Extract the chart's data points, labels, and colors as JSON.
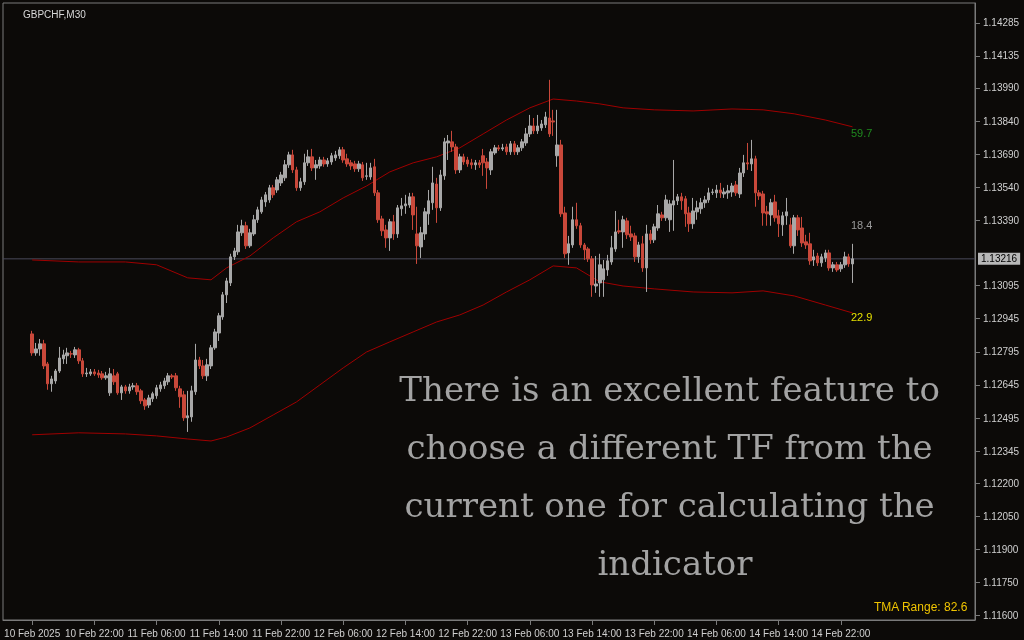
{
  "chart_data": {
    "type": "candlestick",
    "title": "GBPCHF,M30",
    "xlim": [
      "2025-02-10T10:15",
      "2025-02-15T15:15"
    ],
    "xticks": [
      {
        "value": "2025-02-10T14:00",
        "label": "10 Feb 2025"
      },
      {
        "value": "2025-02-10T22:00",
        "label": "10 Feb 22:00"
      },
      {
        "value": "2025-02-11T06:00",
        "label": "11 Feb 06:00"
      },
      {
        "value": "2025-02-11T14:00",
        "label": "11 Feb 14:00"
      },
      {
        "value": "2025-02-11T22:00",
        "label": "11 Feb 22:00"
      },
      {
        "value": "2025-02-12T06:00",
        "label": "12 Feb 06:00"
      },
      {
        "value": "2025-02-12T14:00",
        "label": "12 Feb 14:00"
      },
      {
        "value": "2025-02-12T22:00",
        "label": "12 Feb 22:00"
      },
      {
        "value": "2025-02-13T06:00",
        "label": "13 Feb 06:00"
      },
      {
        "value": "2025-02-13T14:00",
        "label": "13 Feb 14:00"
      },
      {
        "value": "2025-02-13T22:00",
        "label": "13 Feb 22:00"
      },
      {
        "value": "2025-02-14T06:00",
        "label": "14 Feb 06:00"
      },
      {
        "value": "2025-02-14T14:00",
        "label": "14 Feb 14:00"
      },
      {
        "value": "2025-02-14T22:00",
        "label": "14 Feb 22:00"
      }
    ],
    "ylim": [
      1.1158,
      1.14375
    ],
    "yticks": [
      {
        "value": 1.116,
        "label": "1.11600"
      },
      {
        "value": 1.1175,
        "label": "1.11750"
      },
      {
        "value": 1.119,
        "label": "1.11900"
      },
      {
        "value": 1.1205,
        "label": "1.12050"
      },
      {
        "value": 1.122,
        "label": "1.12200"
      },
      1.12345,
      1.12495,
      1.12645,
      1.12795,
      1.12945,
      1.13095,
      {
        "value": 1.1339,
        "label": "1.13390"
      },
      {
        "value": 1.1354,
        "label": "1.13540"
      },
      {
        "value": 1.1369,
        "label": "1.13690"
      },
      {
        "value": 1.1384,
        "label": "1.13840"
      },
      {
        "value": 1.1399,
        "label": "1.13990"
      },
      1.14135,
      1.14285
    ],
    "ref_lines": [
      {
        "axis": "y",
        "value": 1.13216,
        "label": "1.13216",
        "color": "#4a4a5a"
      }
    ],
    "annotations": [
      "59.7",
      "18.4",
      "22.9",
      "TMA Range: 82.6",
      "There is an excellent feature to choose a different TF from the current one for calculating the indicator"
    ],
    "series": [
      {
        "type": "candlestick",
        "x": [
          "2025-02-10T14:00",
          "2025-02-10T14:30",
          "2025-02-10T15:00",
          "2025-02-10T15:30",
          "2025-02-10T16:00",
          "2025-02-10T16:30",
          "2025-02-10T17:00",
          "2025-02-10T17:30",
          "2025-02-10T18:00",
          "2025-02-10T18:30",
          "2025-02-10T19:00",
          "2025-02-10T19:30",
          "2025-02-10T20:00",
          "2025-02-10T20:30",
          "2025-02-10T21:00",
          "2025-02-10T21:30",
          "2025-02-10T22:00",
          "2025-02-10T22:30",
          "2025-02-10T23:00",
          "2025-02-10T23:30",
          "2025-02-11T00:00",
          "2025-02-11T00:30",
          "2025-02-11T01:00",
          "2025-02-11T01:30",
          "2025-02-11T02:00",
          "2025-02-11T02:30",
          "2025-02-11T03:00",
          "2025-02-11T03:30",
          "2025-02-11T04:00",
          "2025-02-11T04:30",
          "2025-02-11T05:00",
          "2025-02-11T05:30",
          "2025-02-11T06:00",
          "2025-02-11T06:30",
          "2025-02-11T07:00",
          "2025-02-11T07:30",
          "2025-02-11T08:00",
          "2025-02-11T08:30",
          "2025-02-11T09:00",
          "2025-02-11T09:30",
          "2025-02-11T10:00",
          "2025-02-11T10:30",
          "2025-02-11T11:00",
          "2025-02-11T11:30",
          "2025-02-11T12:00",
          "2025-02-11T12:30",
          "2025-02-11T13:00",
          "2025-02-11T13:30",
          "2025-02-11T14:00",
          "2025-02-11T14:30",
          "2025-02-11T15:00",
          "2025-02-11T15:30",
          "2025-02-11T16:00",
          "2025-02-11T16:30",
          "2025-02-11T17:00",
          "2025-02-11T17:30",
          "2025-02-11T18:00",
          "2025-02-11T18:30",
          "2025-02-11T19:00",
          "2025-02-11T19:30",
          "2025-02-11T20:00",
          "2025-02-11T20:30",
          "2025-02-11T21:00",
          "2025-02-11T21:30",
          "2025-02-11T22:00",
          "2025-02-11T22:30",
          "2025-02-11T23:00",
          "2025-02-11T23:30",
          "2025-02-12T00:00",
          "2025-02-12T00:30",
          "2025-02-12T01:00",
          "2025-02-12T01:30",
          "2025-02-12T02:00",
          "2025-02-12T02:30",
          "2025-02-12T03:00",
          "2025-02-12T03:30",
          "2025-02-12T04:00",
          "2025-02-12T04:30",
          "2025-02-12T05:00",
          "2025-02-12T05:30",
          "2025-02-12T06:00",
          "2025-02-12T06:30",
          "2025-02-12T07:00",
          "2025-02-12T07:30",
          "2025-02-12T08:00",
          "2025-02-12T08:30",
          "2025-02-12T09:00",
          "2025-02-12T09:30",
          "2025-02-12T10:00",
          "2025-02-12T10:30",
          "2025-02-12T11:00",
          "2025-02-12T11:30",
          "2025-02-12T12:00",
          "2025-02-12T12:30",
          "2025-02-12T13:00",
          "2025-02-12T13:30",
          "2025-02-12T14:00",
          "2025-02-12T14:30",
          "2025-02-12T15:00",
          "2025-02-12T15:30",
          "2025-02-12T16:00",
          "2025-02-12T16:30",
          "2025-02-12T17:00",
          "2025-02-12T17:30",
          "2025-02-12T18:00",
          "2025-02-12T18:30",
          "2025-02-12T19:00",
          "2025-02-12T19:30",
          "2025-02-12T20:00",
          "2025-02-12T20:30",
          "2025-02-12T21:00",
          "2025-02-12T21:30",
          "2025-02-12T22:00",
          "2025-02-12T22:30",
          "2025-02-12T23:00",
          "2025-02-12T23:30",
          "2025-02-13T00:00",
          "2025-02-13T00:30",
          "2025-02-13T01:00",
          "2025-02-13T01:30",
          "2025-02-13T02:00",
          "2025-02-13T02:30",
          "2025-02-13T03:00",
          "2025-02-13T03:30",
          "2025-02-13T04:00",
          "2025-02-13T04:30",
          "2025-02-13T05:00",
          "2025-02-13T05:30",
          "2025-02-13T06:00",
          "2025-02-13T06:30",
          "2025-02-13T07:00",
          "2025-02-13T07:30",
          "2025-02-13T08:00",
          "2025-02-13T08:30",
          "2025-02-13T09:00",
          "2025-02-13T09:30",
          "2025-02-13T10:00",
          "2025-02-13T10:30",
          "2025-02-13T11:00",
          "2025-02-13T11:30",
          "2025-02-13T12:00",
          "2025-02-13T12:30",
          "2025-02-13T13:00",
          "2025-02-13T13:30",
          "2025-02-13T14:00",
          "2025-02-13T14:30",
          "2025-02-13T15:00",
          "2025-02-13T15:30",
          "2025-02-13T16:00",
          "2025-02-13T16:30",
          "2025-02-13T17:00",
          "2025-02-13T17:30",
          "2025-02-13T18:00",
          "2025-02-13T18:30",
          "2025-02-13T19:00",
          "2025-02-13T19:30",
          "2025-02-13T20:00",
          "2025-02-13T20:30",
          "2025-02-13T21:00",
          "2025-02-13T21:30",
          "2025-02-13T22:00",
          "2025-02-13T22:30",
          "2025-02-13T23:00",
          "2025-02-13T23:30",
          "2025-02-14T00:00",
          "2025-02-14T00:30",
          "2025-02-14T01:00",
          "2025-02-14T01:30",
          "2025-02-14T02:00",
          "2025-02-14T02:30",
          "2025-02-14T03:00",
          "2025-02-14T03:30",
          "2025-02-14T04:00",
          "2025-02-14T04:30",
          "2025-02-14T05:00",
          "2025-02-14T05:30",
          "2025-02-14T06:00",
          "2025-02-14T06:30",
          "2025-02-14T07:00",
          "2025-02-14T07:30",
          "2025-02-14T08:00",
          "2025-02-14T08:30",
          "2025-02-14T09:00",
          "2025-02-14T09:30",
          "2025-02-14T10:00",
          "2025-02-14T10:30",
          "2025-02-14T11:00",
          "2025-02-14T11:30",
          "2025-02-14T12:00",
          "2025-02-14T12:30",
          "2025-02-14T13:00",
          "2025-02-14T13:30",
          "2025-02-14T14:00",
          "2025-02-14T14:30",
          "2025-02-14T15:00",
          "2025-02-14T15:30",
          "2025-02-14T16:00",
          "2025-02-14T16:30",
          "2025-02-14T17:00",
          "2025-02-14T17:30",
          "2025-02-14T18:00",
          "2025-02-14T18:30",
          "2025-02-14T19:00",
          "2025-02-14T19:30",
          "2025-02-14T20:00",
          "2025-02-14T20:30",
          "2025-02-14T21:00",
          "2025-02-14T21:30",
          "2025-02-14T22:00",
          "2025-02-14T22:30",
          "2025-02-14T23:00",
          "2025-02-14T23:30"
        ],
        "ohlc": [
          [
            1.12876,
            1.1289,
            1.12777,
            1.1279
          ],
          [
            1.1279,
            1.12835,
            1.12777,
            1.12808
          ],
          [
            1.12808,
            1.12853,
            1.12777,
            1.12831
          ],
          [
            1.12831,
            1.12849,
            1.12717,
            1.12731
          ],
          [
            1.1274,
            1.12749,
            1.12623,
            1.1265
          ],
          [
            1.1265,
            1.12686,
            1.12614,
            1.12672
          ],
          [
            1.12663,
            1.12717,
            1.1265,
            1.12708
          ],
          [
            1.12708,
            1.12817,
            1.12699,
            1.12767
          ],
          [
            1.12763,
            1.12804,
            1.1274,
            1.12781
          ],
          [
            1.12777,
            1.12813,
            1.1274,
            1.1279
          ],
          [
            1.12786,
            1.12799,
            1.12767,
            1.12785
          ],
          [
            1.12781,
            1.12817,
            1.12767,
            1.12804
          ],
          [
            1.12804,
            1.12813,
            1.1274,
            1.12754
          ],
          [
            1.12754,
            1.12767,
            1.12681,
            1.12695
          ],
          [
            1.12695,
            1.12722,
            1.12681,
            1.12699
          ],
          [
            1.12695,
            1.12717,
            1.12686,
            1.12704
          ],
          [
            1.12704,
            1.12717,
            1.12686,
            1.12695
          ],
          [
            1.12699,
            1.12713,
            1.12677,
            1.1269
          ],
          [
            1.12695,
            1.12708,
            1.12668,
            1.12677
          ],
          [
            1.12677,
            1.12704,
            1.12668,
            1.12686
          ],
          [
            1.12609,
            1.12722,
            1.12595,
            1.12695
          ],
          [
            1.12686,
            1.12717,
            1.12645,
            1.12659
          ],
          [
            1.12695,
            1.12704,
            1.126,
            1.12609
          ],
          [
            1.12609,
            1.12645,
            1.12577,
            1.12636
          ],
          [
            1.12636,
            1.12645,
            1.12605,
            1.12618
          ],
          [
            1.12618,
            1.1265,
            1.12605,
            1.12636
          ],
          [
            1.12636,
            1.12654,
            1.12623,
            1.12641
          ],
          [
            1.12641,
            1.12654,
            1.126,
            1.12614
          ],
          [
            1.12618,
            1.12627,
            1.12559,
            1.12573
          ],
          [
            1.12577,
            1.12586,
            1.12532,
            1.1255
          ],
          [
            1.12554,
            1.126,
            1.12541,
            1.12586
          ],
          [
            1.12582,
            1.12614,
            1.12568,
            1.12605
          ],
          [
            1.12596,
            1.12645,
            1.12582,
            1.12632
          ],
          [
            1.12627,
            1.12659,
            1.12614,
            1.12645
          ],
          [
            1.12641,
            1.12677,
            1.12627,
            1.12663
          ],
          [
            1.12659,
            1.12699,
            1.12645,
            1.12686
          ],
          [
            1.12686,
            1.12695,
            1.12672,
            1.12681
          ],
          [
            1.12686,
            1.12699,
            1.12618,
            1.12632
          ],
          [
            1.12627,
            1.12641,
            1.12541,
            1.12591
          ],
          [
            1.126,
            1.12618,
            1.12482,
            1.12496
          ],
          [
            1.12496,
            1.12618,
            1.12432,
            1.12505
          ],
          [
            1.125,
            1.12641,
            1.12478,
            1.12618
          ],
          [
            1.12614,
            1.12831,
            1.126,
            1.12758
          ],
          [
            1.12758,
            1.12772,
            1.12717,
            1.12731
          ],
          [
            1.12731,
            1.12758,
            1.12672,
            1.12686
          ],
          [
            1.12686,
            1.12763,
            1.12663,
            1.12736
          ],
          [
            1.12731,
            1.12826,
            1.12717,
            1.12813
          ],
          [
            1.12813,
            1.12899,
            1.12804,
            1.12885
          ],
          [
            1.1288,
            1.12971,
            1.12844,
            1.12958
          ],
          [
            1.12953,
            1.13066,
            1.1294,
            1.13053
          ],
          [
            1.13053,
            1.1313,
            1.13016,
            1.13116
          ],
          [
            1.13107,
            1.13239,
            1.13093,
            1.13225
          ],
          [
            1.13225,
            1.13266,
            1.13211,
            1.13252
          ],
          [
            1.13248,
            1.1337,
            1.13234,
            1.13338
          ],
          [
            1.13334,
            1.13393,
            1.1332,
            1.13366
          ],
          [
            1.13366,
            1.13384,
            1.13261,
            1.13275
          ],
          [
            1.13275,
            1.13352,
            1.13266,
            1.13334
          ],
          [
            1.13329,
            1.13415,
            1.1332,
            1.13393
          ],
          [
            1.13393,
            1.13452,
            1.13379,
            1.13438
          ],
          [
            1.13429,
            1.13497,
            1.1342,
            1.13483
          ],
          [
            1.13474,
            1.13519,
            1.13452,
            1.13506
          ],
          [
            1.13483,
            1.13551,
            1.1347,
            1.13538
          ],
          [
            1.13538,
            1.13551,
            1.13492,
            1.13506
          ],
          [
            1.13528,
            1.13587,
            1.13515,
            1.13574
          ],
          [
            1.1356,
            1.1361,
            1.13546,
            1.13596
          ],
          [
            1.13583,
            1.13664,
            1.13569,
            1.13642
          ],
          [
            1.13642,
            1.13701,
            1.13628,
            1.13687
          ],
          [
            1.13687,
            1.1371,
            1.13605,
            1.13619
          ],
          [
            1.13619,
            1.13633,
            1.13524,
            1.13538
          ],
          [
            1.13538,
            1.13583,
            1.13524,
            1.13565
          ],
          [
            1.13565,
            1.13692,
            1.13551,
            1.13651
          ],
          [
            1.13651,
            1.1371,
            1.13637,
            1.13678
          ],
          [
            1.13678,
            1.13714,
            1.13614,
            1.13628
          ],
          [
            1.13628,
            1.13664,
            1.13574,
            1.13642
          ],
          [
            1.13637,
            1.13678,
            1.13624,
            1.13664
          ],
          [
            1.13664,
            1.13678,
            1.13633,
            1.13646
          ],
          [
            1.13646,
            1.13673,
            1.13633,
            1.1366
          ],
          [
            1.13655,
            1.13696,
            1.13642,
            1.13683
          ],
          [
            1.13673,
            1.13705,
            1.1366,
            1.13687
          ],
          [
            1.13683,
            1.13723,
            1.13669,
            1.1371
          ],
          [
            1.1371,
            1.13723,
            1.13651,
            1.13664
          ],
          [
            1.13669,
            1.13692,
            1.13633,
            1.13646
          ],
          [
            1.13651,
            1.13664,
            1.13619,
            1.13637
          ],
          [
            1.13646,
            1.1366,
            1.1361,
            1.13624
          ],
          [
            1.13624,
            1.1366,
            1.1361,
            1.13646
          ],
          [
            1.13642,
            1.13655,
            1.13569,
            1.13583
          ],
          [
            1.1359,
            1.13651,
            1.13574,
            1.13592
          ],
          [
            1.13587,
            1.13651,
            1.13574,
            1.13628
          ],
          [
            1.13633,
            1.13669,
            1.13501,
            1.13515
          ],
          [
            1.13515,
            1.13528,
            1.13379,
            1.13393
          ],
          [
            1.13397,
            1.13411,
            1.1332,
            1.13343
          ],
          [
            1.13347,
            1.1337,
            1.13266,
            1.13311
          ],
          [
            1.13311,
            1.13397,
            1.13252,
            1.13384
          ],
          [
            1.13384,
            1.13415,
            1.13302,
            1.13329
          ],
          [
            1.13329,
            1.1346,
            1.13311,
            1.13447
          ],
          [
            1.13443,
            1.13492,
            1.13411,
            1.13456
          ],
          [
            1.13456,
            1.13506,
            1.1342,
            1.13465
          ],
          [
            1.1346,
            1.13515,
            1.13447,
            1.13497
          ],
          [
            1.13497,
            1.13515,
            1.13347,
            1.13415
          ],
          [
            1.13329,
            1.13452,
            1.13193,
            1.13275
          ],
          [
            1.1327,
            1.13361,
            1.1322,
            1.13334
          ],
          [
            1.13329,
            1.13447,
            1.13302,
            1.13429
          ],
          [
            1.1342,
            1.13528,
            1.1337,
            1.13479
          ],
          [
            1.1347,
            1.13633,
            1.13438,
            1.1356
          ],
          [
            1.13555,
            1.13583,
            1.13379,
            1.13447
          ],
          [
            1.13447,
            1.13619,
            1.13433,
            1.13596
          ],
          [
            1.13592,
            1.13764,
            1.13574,
            1.13746
          ],
          [
            1.13741,
            1.13777,
            1.13664,
            1.1375
          ],
          [
            1.13746,
            1.13796,
            1.13701,
            1.13723
          ],
          [
            1.13723,
            1.13737,
            1.13601,
            1.13619
          ],
          [
            1.13619,
            1.13692,
            1.13605,
            1.13678
          ],
          [
            1.13678,
            1.13692,
            1.13642,
            1.13655
          ],
          [
            1.13664,
            1.13678,
            1.13633,
            1.13646
          ],
          [
            1.13651,
            1.13669,
            1.13624,
            1.13642
          ],
          [
            1.13642,
            1.13664,
            1.13619,
            1.13651
          ],
          [
            1.13651,
            1.13664,
            1.13628,
            1.13642
          ],
          [
            1.13683,
            1.13714,
            1.13592,
            1.13651
          ],
          [
            1.13655,
            1.13673,
            1.13533,
            1.13628
          ],
          [
            1.13619,
            1.13714,
            1.13596,
            1.13701
          ],
          [
            1.13696,
            1.13732,
            1.13687,
            1.13719
          ],
          [
            1.13719,
            1.13732,
            1.13705,
            1.13714
          ],
          [
            1.13714,
            1.13737,
            1.13705,
            1.13719
          ],
          [
            1.13723,
            1.13737,
            1.13687,
            1.13701
          ],
          [
            1.13701,
            1.1375,
            1.13687,
            1.13737
          ],
          [
            1.13737,
            1.1375,
            1.13687,
            1.13701
          ],
          [
            1.13701,
            1.13732,
            1.13687,
            1.13719
          ],
          [
            1.13719,
            1.13759,
            1.13705,
            1.13746
          ],
          [
            1.13741,
            1.13809,
            1.13728,
            1.13782
          ],
          [
            1.13782,
            1.13868,
            1.13768,
            1.13818
          ],
          [
            1.13818,
            1.13854,
            1.13782,
            1.13796
          ],
          [
            1.13796,
            1.13868,
            1.13782,
            1.13818
          ],
          [
            1.13809,
            1.13845,
            1.13796,
            1.13827
          ],
          [
            1.13823,
            1.13882,
            1.13809,
            1.13859
          ],
          [
            1.13854,
            1.14027,
            1.13768,
            1.13782
          ],
          [
            1.13841,
            1.13891,
            1.13773,
            1.13836
          ],
          [
            1.13683,
            1.13891,
            1.13633,
            1.13732
          ],
          [
            1.13732,
            1.13755,
            1.13406,
            1.1342
          ],
          [
            1.13424,
            1.13452,
            1.1322,
            1.13239
          ],
          [
            1.13243,
            1.1332,
            1.13189,
            1.13284
          ],
          [
            1.13279,
            1.13452,
            1.13266,
            1.13393
          ],
          [
            1.13393,
            1.1347,
            1.13352,
            1.13366
          ],
          [
            1.13366,
            1.13379,
            1.13266,
            1.13279
          ],
          [
            1.13279,
            1.13288,
            1.13211,
            1.13257
          ],
          [
            1.13261,
            1.1327,
            1.13202,
            1.13216
          ],
          [
            1.13216,
            1.13229,
            1.13044,
            1.13098
          ],
          [
            1.13093,
            1.13229,
            1.13062,
            1.13102
          ],
          [
            1.13107,
            1.13239,
            1.13044,
            1.13189
          ],
          [
            1.13121,
            1.13211,
            1.13044,
            1.13171
          ],
          [
            1.13166,
            1.13234,
            1.13139,
            1.13207
          ],
          [
            1.13202,
            1.1332,
            1.13189,
            1.13266
          ],
          [
            1.13261,
            1.13433,
            1.13248,
            1.13338
          ],
          [
            1.13343,
            1.13393,
            1.13329,
            1.13338
          ],
          [
            1.13338,
            1.13411,
            1.13266,
            1.13393
          ],
          [
            1.13388,
            1.13402,
            1.13306,
            1.13325
          ],
          [
            1.13329,
            1.13366,
            1.13297,
            1.13315
          ],
          [
            1.1332,
            1.13334,
            1.13202,
            1.13225
          ],
          [
            1.13225,
            1.13293,
            1.13198,
            1.13279
          ],
          [
            1.13284,
            1.1332,
            1.13157,
            1.13175
          ],
          [
            1.13175,
            1.1337,
            1.13066,
            1.13329
          ],
          [
            1.13329,
            1.13347,
            1.13284,
            1.13302
          ],
          [
            1.13302,
            1.13375,
            1.13288,
            1.13361
          ],
          [
            1.13356,
            1.1346,
            1.13343,
            1.1342
          ],
          [
            1.13415,
            1.13429,
            1.13388,
            1.13402
          ],
          [
            1.13402,
            1.13506,
            1.13388,
            1.13483
          ],
          [
            1.13393,
            1.13483,
            1.13338,
            1.13465
          ],
          [
            1.1346,
            1.13664,
            1.13343,
            1.13479
          ],
          [
            1.13479,
            1.1351,
            1.1346,
            1.13497
          ],
          [
            1.13497,
            1.13515,
            1.13438,
            1.13479
          ],
          [
            1.13488,
            1.13501,
            1.13361,
            1.1342
          ],
          [
            1.13424,
            1.13452,
            1.13338,
            1.13375
          ],
          [
            1.13375,
            1.13492,
            1.13352,
            1.13433
          ],
          [
            1.13429,
            1.13479,
            1.13393,
            1.13447
          ],
          [
            1.13443,
            1.13492,
            1.1342,
            1.1347
          ],
          [
            1.1347,
            1.13501,
            1.13447,
            1.13483
          ],
          [
            1.13483,
            1.13538,
            1.1347,
            1.13515
          ],
          [
            1.13517,
            1.13533,
            1.13506,
            1.13519
          ],
          [
            1.13515,
            1.13551,
            1.13492,
            1.13528
          ],
          [
            1.13528,
            1.1356,
            1.13492,
            1.13515
          ],
          [
            1.1351,
            1.13538,
            1.13492,
            1.13519
          ],
          [
            1.13515,
            1.13551,
            1.13488,
            1.13524
          ],
          [
            1.13519,
            1.1356,
            1.13497,
            1.13546
          ],
          [
            1.13551,
            1.13569,
            1.13501,
            1.13515
          ],
          [
            1.1351,
            1.13628,
            1.13492,
            1.13605
          ],
          [
            1.13605,
            1.13687,
            1.13587,
            1.13651
          ],
          [
            1.13651,
            1.13741,
            1.13619,
            1.13646
          ],
          [
            1.13646,
            1.13755,
            1.13614,
            1.13669
          ],
          [
            1.13669,
            1.13683,
            1.13452,
            1.13515
          ],
          [
            1.13515,
            1.13528,
            1.13483,
            1.13501
          ],
          [
            1.1351,
            1.13524,
            1.13366,
            1.13424
          ],
          [
            1.13429,
            1.13456,
            1.13366,
            1.1342
          ],
          [
            1.13415,
            1.13488,
            1.13366,
            1.1347
          ],
          [
            1.13474,
            1.13506,
            1.13384,
            1.13402
          ],
          [
            1.13411,
            1.13438,
            1.13315,
            1.13375
          ],
          [
            1.1337,
            1.13429,
            1.1332,
            1.13411
          ],
          [
            1.13411,
            1.13492,
            1.1337,
            1.13429
          ],
          [
            1.1337,
            1.13402,
            1.13266,
            1.13275
          ],
          [
            1.13275,
            1.13415,
            1.13239,
            1.13402
          ],
          [
            1.13402,
            1.13415,
            1.1332,
            1.13347
          ],
          [
            1.13356,
            1.13406,
            1.1327,
            1.13288
          ],
          [
            1.13293,
            1.13325,
            1.13261,
            1.13279
          ],
          [
            1.13284,
            1.13334,
            1.13189,
            1.13207
          ],
          [
            1.13211,
            1.13257,
            1.13184,
            1.13225
          ],
          [
            1.13229,
            1.13243,
            1.13184,
            1.13198
          ],
          [
            1.13198,
            1.13239,
            1.1318,
            1.13225
          ],
          [
            1.1322,
            1.13257,
            1.13202,
            1.13243
          ],
          [
            1.13243,
            1.13257,
            1.13162,
            1.13175
          ],
          [
            1.13175,
            1.13202,
            1.13157,
            1.13189
          ],
          [
            1.13189,
            1.13202,
            1.13157,
            1.13166
          ],
          [
            1.13171,
            1.13202,
            1.13157,
            1.13189
          ],
          [
            1.13189,
            1.13248,
            1.13175,
            1.13225
          ],
          [
            1.13225,
            1.13239,
            1.1318,
            1.13193
          ],
          [
            1.13193,
            1.13284,
            1.13107,
            1.13216
          ]
        ]
      },
      {
        "type": "line",
        "color": "#a00000",
        "x": [
          "2025-02-10T14:00",
          "2025-02-10T20:00",
          "2025-02-11T02:00",
          "2025-02-11T06:00",
          "2025-02-11T10:00",
          "2025-02-11T13:00",
          "2025-02-11T15:00",
          "2025-02-11T18:00",
          "2025-02-11T21:00",
          "2025-02-12T00:00",
          "2025-02-12T03:00",
          "2025-02-12T06:00",
          "2025-02-12T09:00",
          "2025-02-12T12:00",
          "2025-02-12T15:00",
          "2025-02-12T18:00",
          "2025-02-12T21:00",
          "2025-02-13T00:00",
          "2025-02-13T03:00",
          "2025-02-13T06:00",
          "2025-02-13T09:00",
          "2025-02-13T12:00",
          "2025-02-13T15:00",
          "2025-02-13T18:00",
          "2025-02-13T22:00",
          "2025-02-14T03:00",
          "2025-02-14T08:00",
          "2025-02-14T12:00",
          "2025-02-14T16:00",
          "2025-02-14T20:00",
          "2025-02-14T23:30"
        ],
        "values": [
          1.13211,
          1.13202,
          1.13202,
          1.13189,
          1.1313,
          1.13121,
          1.13175,
          1.13229,
          1.13311,
          1.13384,
          1.13429,
          1.13492,
          1.13546,
          1.1361,
          1.13651,
          1.13678,
          1.13719,
          1.13782,
          1.13845,
          1.139,
          1.1394,
          1.13931,
          1.13918,
          1.139,
          1.13891,
          1.13886,
          1.13895,
          1.13891,
          1.13873,
          1.13845,
          1.13814
        ]
      },
      {
        "type": "line",
        "color": "#a00000",
        "x": [
          "2025-02-10T14:00",
          "2025-02-10T20:00",
          "2025-02-11T02:00",
          "2025-02-11T06:00",
          "2025-02-11T10:00",
          "2025-02-11T13:00",
          "2025-02-11T15:00",
          "2025-02-11T18:00",
          "2025-02-11T21:00",
          "2025-02-12T00:00",
          "2025-02-12T03:00",
          "2025-02-12T06:00",
          "2025-02-12T09:00",
          "2025-02-12T12:00",
          "2025-02-12T15:00",
          "2025-02-12T18:00",
          "2025-02-12T21:00",
          "2025-02-13T00:00",
          "2025-02-13T03:00",
          "2025-02-13T06:00",
          "2025-02-13T09:00",
          "2025-02-13T12:00",
          "2025-02-13T15:00",
          "2025-02-13T18:00",
          "2025-02-13T22:00",
          "2025-02-14T03:00",
          "2025-02-14T08:00",
          "2025-02-14T12:00",
          "2025-02-14T16:00",
          "2025-02-14T20:00",
          "2025-02-14T23:30"
        ],
        "values": [
          1.12419,
          1.12428,
          1.12423,
          1.12414,
          1.124,
          1.12391,
          1.12409,
          1.1245,
          1.12509,
          1.12568,
          1.12645,
          1.12722,
          1.12794,
          1.1284,
          1.12885,
          1.1293,
          1.12962,
          1.13007,
          1.13066,
          1.13121,
          1.13184,
          1.13175,
          1.13112,
          1.13093,
          1.1308,
          1.13066,
          1.13062,
          1.13071,
          1.13048,
          1.13007,
          1.12971
        ]
      }
    ]
  }
}
